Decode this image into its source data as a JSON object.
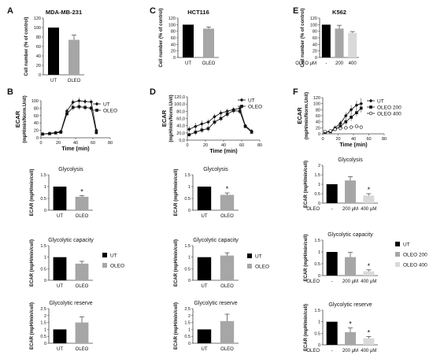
{
  "colors": {
    "ut": "#000000",
    "oleo": "#a6a6a6",
    "oleo200": "#a6a6a6",
    "oleo400": "#d9d9d9",
    "axis": "#444444"
  },
  "panel_labels": [
    "A",
    "B",
    "C",
    "D",
    "E",
    "F"
  ],
  "tick_labels": {
    "cn": [
      "0",
      "20",
      "40",
      "60",
      "80",
      "100",
      "120"
    ],
    "ecar_b": [
      "0",
      "20",
      "40",
      "60",
      "80",
      "100"
    ],
    "ecar_d": [
      "0,0",
      "20,0",
      "40,0",
      "60,0",
      "80,0",
      "100,0",
      "120,0"
    ],
    "ecar_f": [
      "0",
      "20",
      "40",
      "60",
      "80",
      "100",
      "120"
    ],
    "time": [
      "0",
      "20",
      "40",
      "60",
      "80"
    ],
    "gly_y": [
      "0",
      "0.5",
      "1",
      "1.5"
    ],
    "gly_y_e": [
      "0",
      "0.5",
      "1",
      "1.5",
      "2"
    ],
    "res_y": [
      "0",
      "0.5",
      "1",
      "1.5",
      "2",
      "2.5"
    ]
  },
  "chart_data": [
    {
      "id": "A-cell",
      "type": "bar",
      "title": "MDA-MB-231",
      "ylabel": "Cell number (% of control)",
      "categories": [
        "UT",
        "OLEO"
      ],
      "values": [
        100,
        74
      ],
      "errors": [
        0,
        10
      ],
      "ylim": [
        0,
        120
      ]
    },
    {
      "id": "C-cell",
      "type": "bar",
      "title": "HCT116",
      "ylabel": "Cell number (% of control)",
      "categories": [
        "UT",
        "OLEO"
      ],
      "values": [
        100,
        88
      ],
      "errors": [
        0,
        5
      ],
      "ylim": [
        0,
        120
      ]
    },
    {
      "id": "E-cell",
      "type": "bar",
      "title": "K562",
      "ylabel": "Cell number (% of control)",
      "categories": [
        "-",
        "200",
        "400"
      ],
      "values": [
        100,
        88,
        75
      ],
      "errors": [
        0,
        10,
        4
      ],
      "ylim": [
        0,
        120
      ],
      "xlabel_prefix": "OLEO μM"
    },
    {
      "id": "B-ecar",
      "type": "line",
      "ylabel": "ECAR (mpH/min/Norm.Unit)",
      "xlabel": "Time (min)",
      "xlim": [
        0,
        80
      ],
      "ylim": [
        0,
        100
      ],
      "legend": "top-right",
      "x": [
        2,
        10,
        17,
        23,
        30,
        37,
        44,
        51,
        58,
        64
      ],
      "series": [
        {
          "name": "UT",
          "values": [
            10,
            12,
            14,
            17,
            72,
            96,
            100,
            98,
            97,
            20
          ],
          "errors": [
            2,
            2,
            3,
            3,
            8,
            8,
            9,
            7,
            7,
            5
          ]
        },
        {
          "name": "OLEO",
          "values": [
            10,
            11,
            13,
            15,
            65,
            82,
            84,
            82,
            80,
            14
          ],
          "errors": [
            2,
            2,
            2,
            3,
            7,
            8,
            8,
            7,
            7,
            4
          ]
        }
      ]
    },
    {
      "id": "D-ecar",
      "type": "line",
      "ylabel": "ECAR (mpH/min/Norm.Unit)",
      "xlabel": "Time (min)",
      "xlim": [
        0,
        80
      ],
      "ylim": [
        0,
        120
      ],
      "legend": "top-right",
      "x": [
        2,
        9,
        16,
        23,
        30,
        37,
        44,
        51,
        58,
        64,
        71
      ],
      "series": [
        {
          "name": "UT",
          "values": [
            30,
            38,
            45,
            50,
            65,
            75,
            80,
            85,
            88,
            40,
            25
          ],
          "errors": [
            8,
            10,
            10,
            8,
            8,
            8,
            7,
            7,
            7,
            5,
            5
          ]
        },
        {
          "name": "OLEO",
          "values": [
            15,
            22,
            28,
            32,
            50,
            60,
            72,
            82,
            80,
            38,
            22
          ],
          "errors": [
            5,
            8,
            8,
            8,
            8,
            8,
            8,
            8,
            8,
            5,
            5
          ]
        }
      ]
    },
    {
      "id": "F-ecar",
      "type": "line",
      "ylabel": "ECAR (mpH/min/Norm.Unit)",
      "xlabel": "Time (min)",
      "xlim": [
        0,
        80
      ],
      "ylim": [
        0,
        120
      ],
      "legend": "top-right",
      "x": [
        3,
        10,
        16,
        23,
        30,
        37,
        44,
        50
      ],
      "series": [
        {
          "name": "UT",
          "values": [
            5,
            8,
            20,
            35,
            60,
            80,
            95,
            100
          ],
          "errors": [
            2,
            3,
            8,
            10,
            12,
            15,
            15,
            18
          ]
        },
        {
          "name": "OLEO 200",
          "values": [
            5,
            7,
            15,
            25,
            40,
            55,
            70,
            85
          ],
          "errors": [
            2,
            3,
            6,
            8,
            10,
            12,
            12,
            14
          ]
        },
        {
          "name": "OLEO 400",
          "values": [
            8,
            10,
            15,
            18,
            20,
            22,
            25,
            22
          ],
          "errors": [
            2,
            3,
            4,
            5,
            5,
            6,
            6,
            6
          ]
        }
      ]
    },
    {
      "id": "B-gly",
      "type": "bar",
      "title": "Glycolysis",
      "ylabel": "ECAR (mpH/min/cell)",
      "categories": [
        "UT",
        "OLEO"
      ],
      "values": [
        1.0,
        0.57
      ],
      "errors": [
        0,
        0.05
      ],
      "ylim": [
        0,
        1.5
      ],
      "annotations": [
        "",
        "*"
      ]
    },
    {
      "id": "B-cap",
      "type": "bar",
      "title": "Glycolytic capacity",
      "ylabel": "ECAR (mpH/min/cell)",
      "categories": [
        "UT",
        "OLEO"
      ],
      "values": [
        1.0,
        0.72
      ],
      "errors": [
        0,
        0.1
      ],
      "ylim": [
        0,
        1.5
      ],
      "legend": [
        "UT",
        "OLEO"
      ]
    },
    {
      "id": "B-res",
      "type": "bar",
      "title": "Glycolytic reserve",
      "ylabel": "ECAR (mpH/min/cell)",
      "categories": [
        "UT",
        "OLEO"
      ],
      "values": [
        1.0,
        1.5
      ],
      "errors": [
        0,
        0.4
      ],
      "ylim": [
        0,
        2.5
      ]
    },
    {
      "id": "D-gly",
      "type": "bar",
      "title": "Glycolysis",
      "ylabel": "ECAR (mpH/min/cell)",
      "categories": [
        "UT",
        "OLEO"
      ],
      "values": [
        1.0,
        0.65
      ],
      "errors": [
        0,
        0.08
      ],
      "ylim": [
        0,
        1.5
      ],
      "annotations": [
        "",
        "*"
      ]
    },
    {
      "id": "D-cap",
      "type": "bar",
      "title": "Glycolytic capacity",
      "ylabel": "ECAR (mpH/min/cell)",
      "categories": [
        "UT",
        "OLEO"
      ],
      "values": [
        1.0,
        1.07
      ],
      "errors": [
        0,
        0.12
      ],
      "ylim": [
        0,
        1.5
      ],
      "legend": [
        "UT",
        "OLEO"
      ]
    },
    {
      "id": "D-res",
      "type": "bar",
      "title": "Glycolytic reserve",
      "ylabel": "ECAR (mpH/min/cell)",
      "categories": [
        "UT",
        "OLEO"
      ],
      "values": [
        1.0,
        1.6
      ],
      "errors": [
        0,
        0.5
      ],
      "ylim": [
        0,
        2.5
      ]
    },
    {
      "id": "F-gly",
      "type": "bar",
      "title": "Glycolysis",
      "ylabel": "ECAR (mpH/min/cell)",
      "categories": [
        "-",
        "200 μM",
        "400 μM"
      ],
      "values": [
        1.0,
        1.2,
        0.4
      ],
      "errors": [
        0,
        0.2,
        0.1
      ],
      "ylim": [
        0,
        2
      ],
      "annotations": [
        "",
        "",
        "*"
      ],
      "xlabel_prefix": "OLEO"
    },
    {
      "id": "F-cap",
      "type": "bar",
      "title": "Glycolytic capacity",
      "ylabel": "ECAR (mpH/min/cell)",
      "categories": [
        "-",
        "200 μM",
        "400 μM"
      ],
      "values": [
        1.0,
        0.78,
        0.18
      ],
      "errors": [
        0,
        0.2,
        0.06
      ],
      "ylim": [
        0,
        1.5
      ],
      "annotations": [
        "",
        "",
        "*"
      ],
      "xlabel_prefix": "OLEO",
      "legend": [
        "UT",
        "OLEO  200",
        "OLEO  400"
      ]
    },
    {
      "id": "F-res",
      "type": "bar",
      "title": "Glycolytic reserve",
      "ylabel": "ECAR (mpH/min/cell)",
      "categories": [
        "-",
        "200 μM",
        "400 μM"
      ],
      "values": [
        1.0,
        0.55,
        0.28
      ],
      "errors": [
        0,
        0.18,
        0.08
      ],
      "ylim": [
        0,
        1.5
      ],
      "annotations": [
        "",
        "*",
        "*"
      ],
      "xlabel_prefix": "OLEO"
    }
  ]
}
